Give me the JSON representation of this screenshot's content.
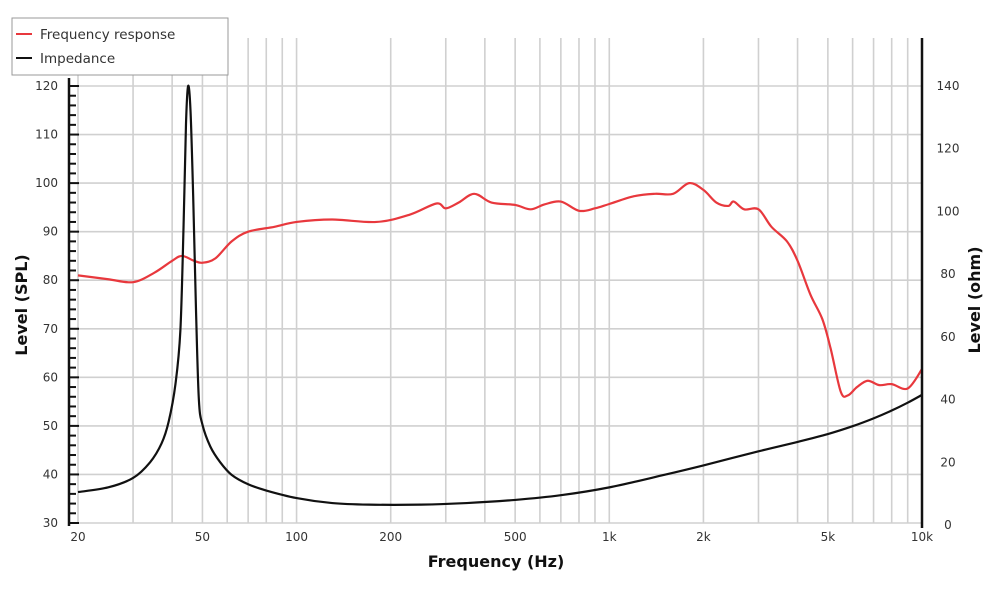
{
  "chart_data": {
    "type": "line",
    "title": "",
    "xlabel": "Frequency (Hz)",
    "ylabel": "Level (SPL)",
    "y2label": "Level (ohm)",
    "xscale": "log",
    "xlim": [
      20,
      10000
    ],
    "ylim": [
      30,
      120
    ],
    "y2lim": [
      0,
      140
    ],
    "grid": true,
    "legend_position": "top-left",
    "x_ticks": [
      20,
      50,
      100,
      200,
      500,
      1000,
      2000,
      5000,
      10000
    ],
    "x_tick_labels": [
      "20",
      "50",
      "100",
      "200",
      "500",
      "1k",
      "2k",
      "5k",
      "10k"
    ],
    "y_ticks": [
      30,
      40,
      50,
      60,
      70,
      80,
      90,
      100,
      110,
      120
    ],
    "y_tick_labels": [
      "30",
      "40",
      "50",
      "60",
      "70",
      "80",
      "90",
      "100",
      "110",
      "120"
    ],
    "y2_ticks": [
      0,
      20,
      40,
      60,
      80,
      100,
      120,
      140
    ],
    "y2_tick_labels": [
      "0",
      "20",
      "40",
      "60",
      "80",
      "100",
      "120",
      "140"
    ],
    "series": [
      {
        "name": "Frequency response",
        "axis": "left",
        "color": "#e8383d",
        "x": [
          20,
          25,
          30,
          35,
          40,
          43,
          47,
          50,
          55,
          62,
          70,
          85,
          100,
          130,
          180,
          230,
          280,
          300,
          330,
          370,
          420,
          500,
          560,
          620,
          700,
          800,
          900,
          1000,
          1200,
          1400,
          1600,
          1800,
          2000,
          2200,
          2400,
          2500,
          2700,
          3000,
          3300,
          3700,
          4000,
          4400,
          4800,
          5100,
          5500,
          5800,
          6200,
          6700,
          7300,
          8000,
          9000,
          10000
        ],
        "y": [
          81,
          80.2,
          79.6,
          81.5,
          84,
          85,
          84,
          83.6,
          84.5,
          88,
          90,
          91,
          92,
          92.5,
          92,
          93.5,
          95.8,
          94.8,
          96,
          97.8,
          96,
          95.5,
          94.6,
          95.6,
          96.2,
          94.3,
          94.8,
          95.7,
          97.3,
          97.8,
          97.8,
          100,
          98.6,
          96,
          95.3,
          96.2,
          94.6,
          94.6,
          91,
          88,
          84,
          77,
          72,
          66,
          57,
          56.3,
          58,
          59.3,
          58.4,
          58.6,
          57.7,
          61.7
        ]
      },
      {
        "name": "Impedance",
        "axis": "right",
        "color": "#111111",
        "x": [
          20,
          25,
          30,
          34,
          37,
          39,
          41,
          42.5,
          43.5,
          44.3,
          45,
          45.8,
          46.7,
          47.7,
          48.7,
          50,
          53,
          57,
          62,
          70,
          80,
          100,
          130,
          170,
          250,
          350,
          500,
          700,
          1000,
          1500,
          2000,
          3000,
          4000,
          5000,
          6000,
          7000,
          8000,
          9000,
          10000
        ],
        "y": [
          10.5,
          12,
          15,
          20,
          26,
          33,
          45,
          62,
          95,
          128,
          140,
          132,
          105,
          68,
          40,
          32,
          25,
          20,
          16,
          13,
          11,
          8.6,
          7,
          6.5,
          6.5,
          7,
          8,
          9.5,
          12,
          16,
          19,
          23.5,
          26.5,
          29,
          31.5,
          34,
          36.5,
          39,
          41.5
        ]
      }
    ]
  }
}
